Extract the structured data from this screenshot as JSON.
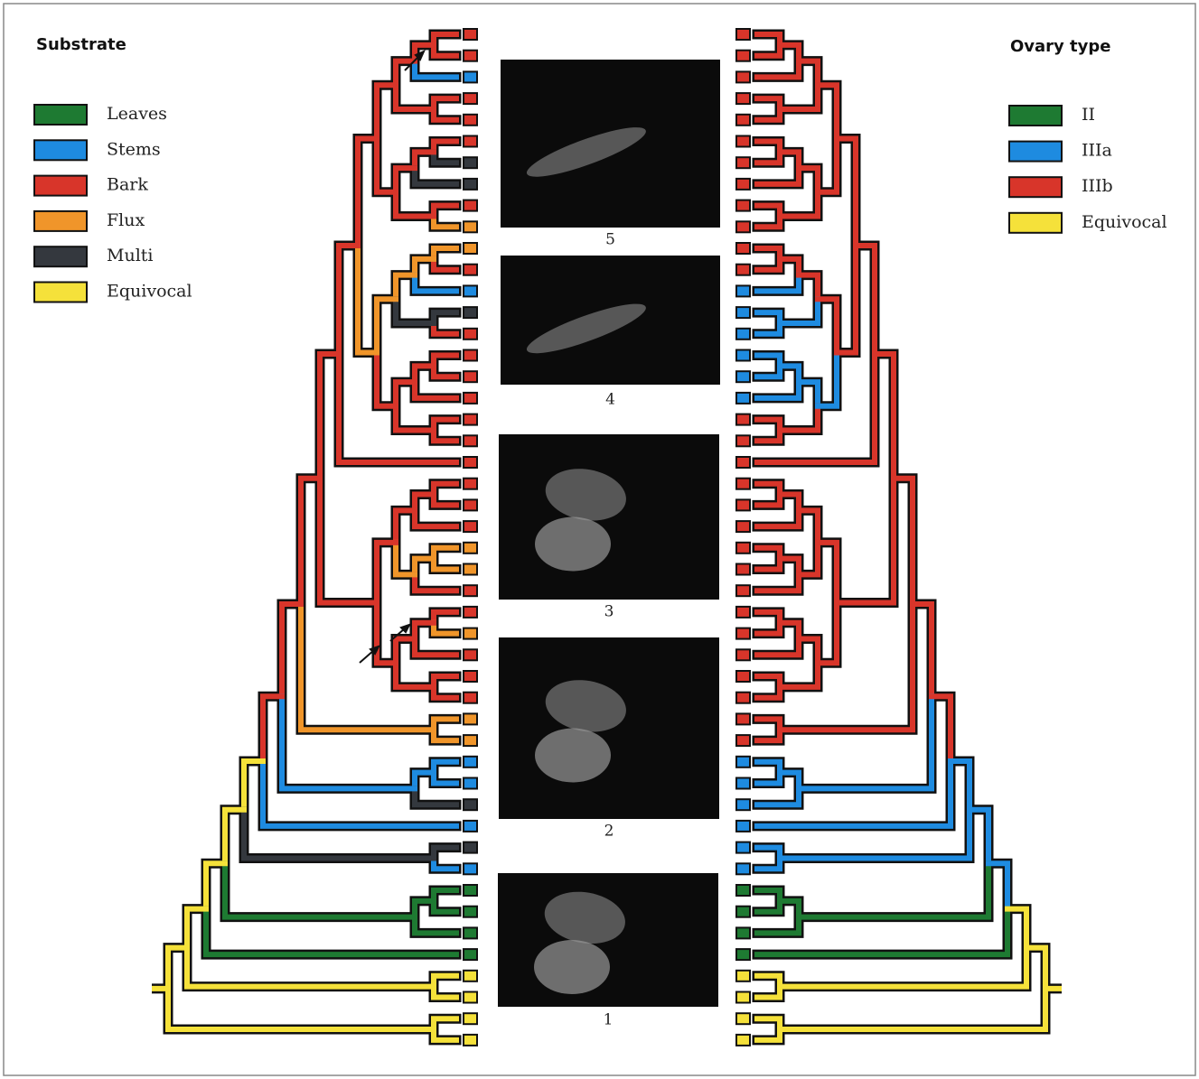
{
  "substrate_legend": {
    "title": "Substrate",
    "items": [
      {
        "label": "Leaves",
        "color": "#1e7a32"
      },
      {
        "label": "Stems",
        "color": "#1e8be0"
      },
      {
        "label": "Bark",
        "color": "#d8352a"
      },
      {
        "label": "Flux",
        "color": "#f0952a"
      },
      {
        "label": "Multi",
        "color": "#34383e"
      },
      {
        "label": "Equivocal",
        "color": "#f5e13a"
      }
    ]
  },
  "ovary_legend": {
    "title": "Ovary type",
    "items": [
      {
        "label": "II",
        "color": "#1e7a32"
      },
      {
        "label": "IIIa",
        "color": "#1e8be0"
      },
      {
        "label": "IIIb",
        "color": "#d8352a"
      },
      {
        "label": "Equivocal",
        "color": "#f5e13a"
      }
    ]
  },
  "photos": [
    {
      "caption": "5"
    },
    {
      "caption": "4"
    },
    {
      "caption": "3"
    },
    {
      "caption": "2"
    },
    {
      "caption": "1"
    }
  ]
}
